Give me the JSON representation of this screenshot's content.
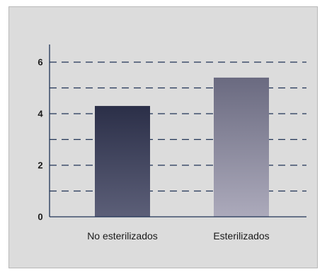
{
  "chart_data": {
    "type": "bar",
    "categories": [
      "No esterilizados",
      "Esterilizados"
    ],
    "values": [
      4.3,
      5.4
    ],
    "title": "",
    "xlabel": "",
    "ylabel": "",
    "ylim": [
      0,
      6.5
    ],
    "y_ticks": [
      "0",
      "2",
      "4",
      "6"
    ],
    "y_tick_values": [
      0,
      2,
      4,
      6
    ],
    "gridlines": [
      1,
      2,
      3,
      4,
      5,
      6
    ],
    "grid": true,
    "legend": "none",
    "colors": {
      "background": "#dcdcdc",
      "axis": "#1f3355",
      "grid": "#1f3355",
      "bar1_top": "#2b2f48",
      "bar1_bottom": "#5c5f78",
      "bar2_top": "#6a6a80",
      "bar2_bottom": "#acaabb"
    }
  }
}
